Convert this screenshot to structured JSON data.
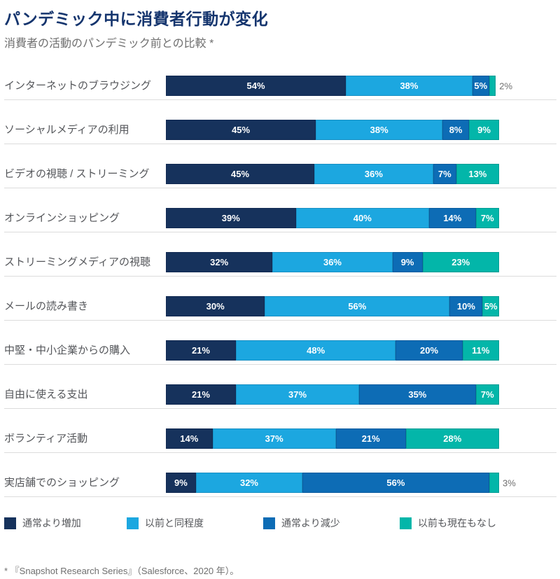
{
  "page": {
    "title": "パンデミック中に消費者行動が変化",
    "subtitle": "消費者の活動のパンデミック前との比較 *",
    "footnote": "* 『Snapshot Research Series』（Salesforce、2020 年）。"
  },
  "colors": {
    "increase": "#16325c",
    "same": "#1ca7e0",
    "decrease": "#0d6cb5",
    "none": "#03b6a9",
    "title": "#15356e",
    "category_text": "#54565a",
    "outside_label_text": "#6f6f6f",
    "divider": "#dcdcdc",
    "value_text": "#ffffff"
  },
  "legend": {
    "items": [
      {
        "label": "通常より増加",
        "color_key": "increase"
      },
      {
        "label": "以前と同程度",
        "color_key": "same"
      },
      {
        "label": "通常より減少",
        "color_key": "decrease"
      },
      {
        "label": "以前も現在もなし",
        "color_key": "none"
      }
    ]
  },
  "chart_data": {
    "type": "bar",
    "orientation": "horizontal",
    "stacked": true,
    "unit": "%",
    "title": "パンデミック中に消費者行動が変化",
    "subtitle": "消費者の活動のパンデミック前との比較 *",
    "xlim": [
      0,
      100
    ],
    "grid": false,
    "legend_position": "bottom",
    "value_labels": "inside-white-bold; values of 3% or less shown outside in gray",
    "categories": [
      "インターネットのブラウジング",
      "ソーシャルメディアの利用",
      "ビデオの視聴 / ストリーミング",
      "オンラインショッピング",
      "ストリーミングメディアの視聴",
      "メールの読み書き",
      "中堅・中小企業からの購入",
      "自由に使える支出",
      "ボランティア活動",
      "実店舗でのショッピング"
    ],
    "series": [
      {
        "name": "通常より増加",
        "color_key": "increase",
        "values": [
          54,
          45,
          45,
          39,
          32,
          30,
          21,
          21,
          14,
          9
        ]
      },
      {
        "name": "以前と同程度",
        "color_key": "same",
        "values": [
          38,
          38,
          36,
          40,
          36,
          56,
          48,
          37,
          37,
          32
        ]
      },
      {
        "name": "通常より減少",
        "color_key": "decrease",
        "values": [
          5,
          8,
          7,
          14,
          9,
          10,
          20,
          35,
          21,
          56
        ]
      },
      {
        "name": "以前も現在もなし",
        "color_key": "none",
        "values": [
          2,
          9,
          13,
          7,
          23,
          5,
          11,
          7,
          28,
          3
        ]
      }
    ],
    "outside_label_threshold": 3
  }
}
